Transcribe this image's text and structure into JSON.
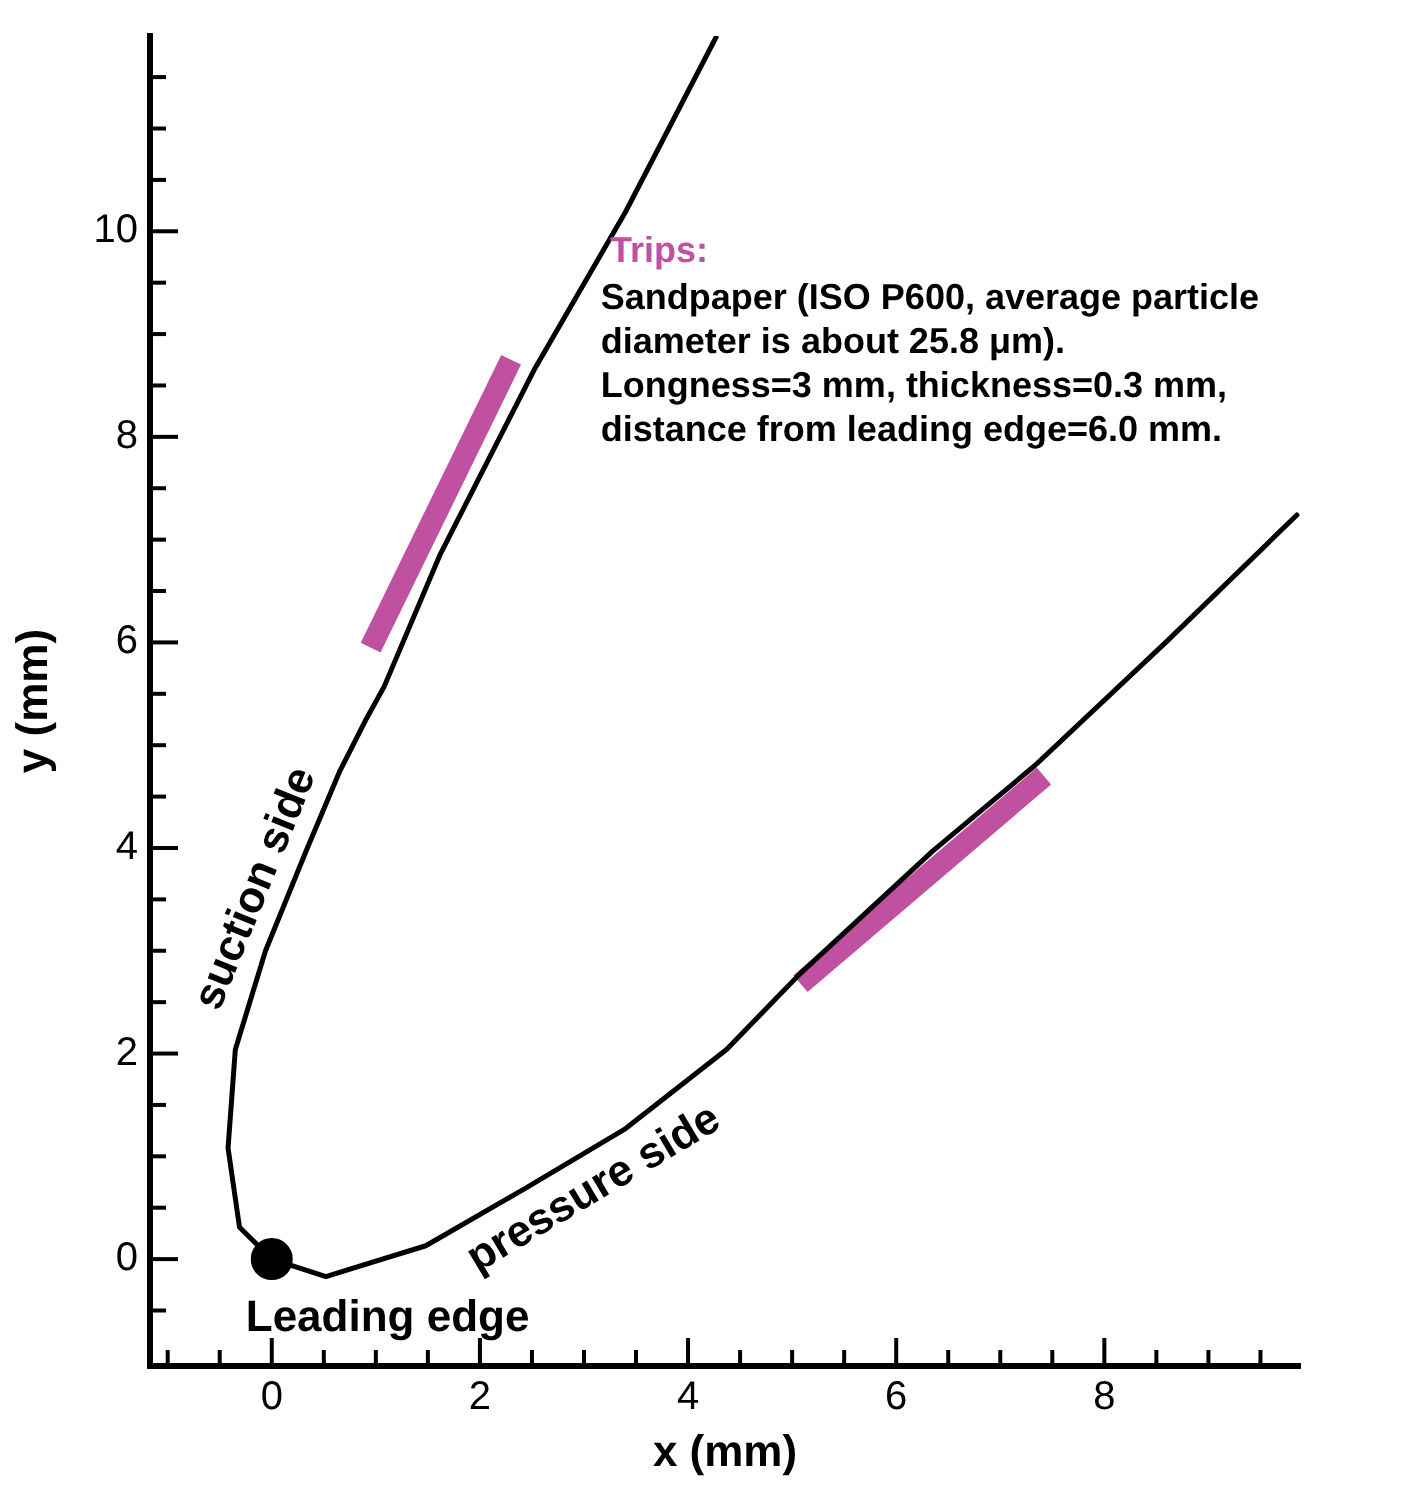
{
  "chart_data": {
    "type": "line",
    "xlabel": "x (mm)",
    "ylabel": "y (mm)",
    "xlim": [
      -1.17,
      9.88
    ],
    "ylim": [
      -1.04,
      11.9
    ],
    "marker": "none",
    "line_style": "solid",
    "xticks": [
      {
        "value": -1,
        "label": null
      },
      {
        "value": -0.5,
        "label": null
      },
      0,
      {
        "value": 0.5,
        "label": null
      },
      {
        "value": 1,
        "label": null
      },
      {
        "value": 1.5,
        "label": null
      },
      2,
      {
        "value": 2.5,
        "label": null
      },
      {
        "value": 3,
        "label": null
      },
      {
        "value": 3.5,
        "label": null
      },
      4,
      {
        "value": 4.5,
        "label": null
      },
      {
        "value": 5,
        "label": null
      },
      {
        "value": 5.5,
        "label": null
      },
      6,
      {
        "value": 6.5,
        "label": null
      },
      {
        "value": 7,
        "label": null
      },
      {
        "value": 7.5,
        "label": null
      },
      8,
      {
        "value": 8.5,
        "label": null
      },
      {
        "value": 9,
        "label": null
      },
      {
        "value": 9.5,
        "label": null
      }
    ],
    "yticks": [
      {
        "value": -0.5,
        "label": null
      },
      0,
      {
        "value": 0.5,
        "label": null
      },
      {
        "value": 1,
        "label": null
      },
      {
        "value": 1.5,
        "label": null
      },
      2,
      {
        "value": 2.5,
        "label": null
      },
      {
        "value": 3,
        "label": null
      },
      {
        "value": 3.5,
        "label": null
      },
      4,
      {
        "value": 4.5,
        "label": null
      },
      {
        "value": 5,
        "label": null
      },
      {
        "value": 5.5,
        "label": null
      },
      6,
      {
        "value": 6.5,
        "label": null
      },
      {
        "value": 7,
        "label": null
      },
      {
        "value": 7.5,
        "label": null
      },
      8,
      {
        "value": 8.5,
        "label": null
      },
      {
        "value": 9,
        "label": null
      },
      {
        "value": 9.5,
        "label": null
      },
      10,
      {
        "value": 10.5,
        "label": null
      },
      {
        "value": 11,
        "label": null
      },
      {
        "value": 11.5,
        "label": null
      }
    ],
    "annotations": [
      "Sandpaper (ISO P600, average particle",
      "diameter is about 25.8 μm).",
      "Longness=3 mm, thickness=0.3 mm,",
      "distance from leading edge=6.0 mm.",
      {
        "text": "Leading edge",
        "x": 0,
        "y": 0
      }
    ],
    "series": [
      {
        "name": "suction side",
        "color": "#000000",
        "x": [
          0,
          -0.31,
          -0.42,
          -0.35,
          -0.06,
          0.33,
          0.65,
          0.9,
          1.08,
          1.62,
          2.52,
          3.4,
          4.27
        ],
        "values": [
          0,
          0.31,
          1.08,
          2.04,
          3.0,
          3.97,
          4.74,
          5.24,
          5.57,
          6.86,
          8.65,
          10.19,
          11.89
        ]
      },
      {
        "name": "pressure side",
        "color": "#000000",
        "x": [
          0,
          0.52,
          1.48,
          2.44,
          3.4,
          4.37,
          5.08,
          6.35,
          7.33,
          8.6,
          9.85
        ],
        "values": [
          0,
          -0.17,
          0.13,
          0.69,
          1.27,
          2.04,
          2.78,
          3.97,
          4.8,
          6.01,
          7.24
        ]
      },
      {
        "name": "Trips:",
        "color": "#c050a0",
        "x": [
          0.95,
          2.3
        ],
        "values": [
          5.95,
          8.75
        ]
      },
      {
        "color": "#c050a0",
        "x": [
          5.08,
          7.42
        ],
        "values": [
          2.68,
          4.7
        ]
      },
      {
        "type": "scatter",
        "marker": "circle",
        "color": "#000000",
        "x": [
          0
        ],
        "values": [
          0
        ]
      }
    ]
  }
}
